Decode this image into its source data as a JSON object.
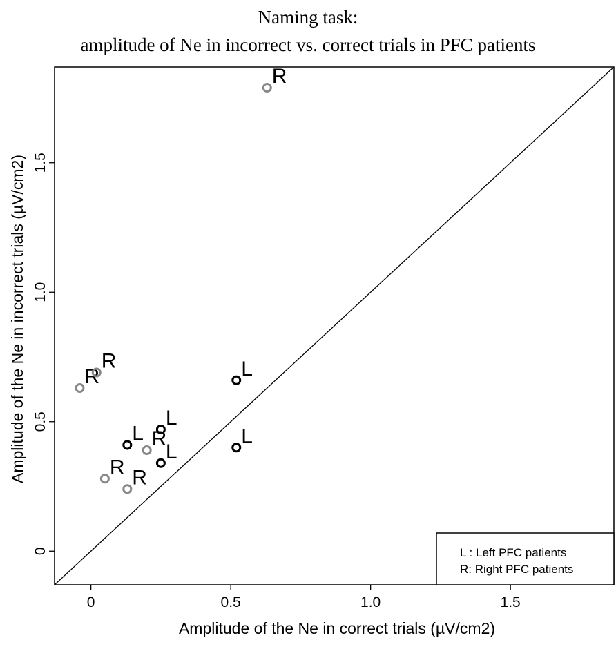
{
  "chart_data": {
    "type": "scatter",
    "title": "Naming task:",
    "subtitle": "amplitude of Ne in incorrect vs. correct trials in PFC patients",
    "xlabel": "Amplitude of the Ne in correct trials (µV/cm2)",
    "ylabel": "Amplitude of the Ne in incorrect trials (µV/cm2)",
    "xlim": [
      -0.13,
      1.87
    ],
    "ylim": [
      -0.13,
      1.87
    ],
    "x_ticks": [
      0,
      0.5,
      1.0,
      1.5
    ],
    "x_tick_labels": [
      "0",
      "0.5",
      "1.0",
      "1.5"
    ],
    "y_ticks": [
      0,
      0.5,
      1.0,
      1.5
    ],
    "y_tick_labels": [
      "0",
      "0.5",
      "1.0",
      "1.5"
    ],
    "reference_line": "identity (y = x)",
    "legend": {
      "position": "bottom-right",
      "entries": [
        "L : Left PFC patients",
        "R: Right PFC patients"
      ]
    },
    "series": [
      {
        "name": "Left PFC patients",
        "marker_label": "L",
        "color": "#000000",
        "points": [
          {
            "x": 0.52,
            "y": 0.66
          },
          {
            "x": 0.52,
            "y": 0.4
          },
          {
            "x": 0.25,
            "y": 0.47
          },
          {
            "x": 0.13,
            "y": 0.41
          },
          {
            "x": 0.25,
            "y": 0.34
          }
        ]
      },
      {
        "name": "Right PFC patients",
        "marker_label": "R",
        "color": "#888888",
        "points": [
          {
            "x": 0.63,
            "y": 1.79
          },
          {
            "x": -0.04,
            "y": 0.63
          },
          {
            "x": 0.02,
            "y": 0.69
          },
          {
            "x": 0.2,
            "y": 0.39
          },
          {
            "x": 0.05,
            "y": 0.28
          },
          {
            "x": 0.13,
            "y": 0.24
          }
        ]
      }
    ]
  }
}
